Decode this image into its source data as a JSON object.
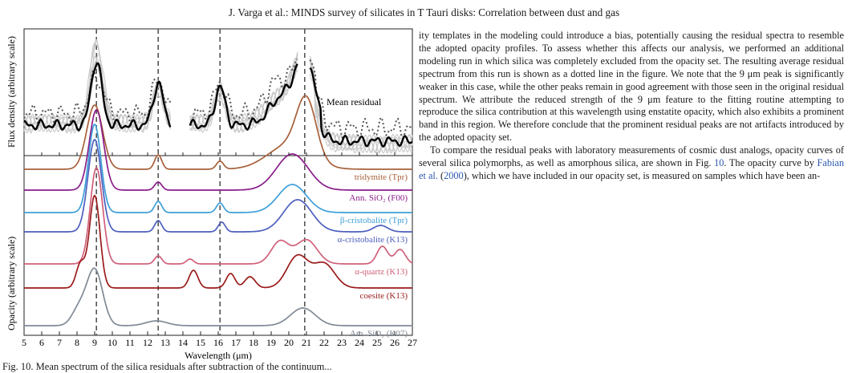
{
  "header": {
    "running_title": "J. Varga et al.: MINDS survey of silicates in T Tauri disks: Correlation between dust and gas"
  },
  "figure": {
    "top_ylabel": "Flux density (arbitrary scale)",
    "bottom_ylabel": "Opacity (arbitrary scale)",
    "xlabel": "Wavelength (μm)",
    "mean_label": "Mean residual",
    "curve_labels": [
      {
        "text": "tridymite (Tpr)",
        "color": "#a8603a"
      },
      {
        "text": "Ann. SiO₂ (F00)",
        "color": "#8b1d8b"
      },
      {
        "text": "β-cristobalite (Tpr)",
        "color": "#3d9fd8"
      },
      {
        "text": "α-cristobalite (K13)",
        "color": "#4d5fbf"
      },
      {
        "text": "α-quartz (K13)",
        "color": "#d0607a"
      },
      {
        "text": "coesite (K13)",
        "color": "#9b1b1b"
      },
      {
        "text": "Am. SiO₂ (K07)",
        "color": "#808a96"
      }
    ]
  },
  "chart_data": {
    "type": "line",
    "xlabel": "Wavelength (μm)",
    "ylabel_top": "Flux density (arbitrary scale)",
    "ylabel_bottom": "Opacity (arbitrary scale)",
    "xlim": [
      5,
      27
    ],
    "xticks": [
      5,
      6,
      7,
      8,
      9,
      10,
      11,
      12,
      13,
      14,
      15,
      16,
      17,
      18,
      19,
      20,
      21,
      22,
      23,
      24,
      25,
      26,
      27
    ],
    "vertical_lines": [
      9.1,
      12.6,
      16.1,
      20.9
    ],
    "series": [
      {
        "name": "Mean residual",
        "color": "#000000"
      },
      {
        "name": "tridymite (Tpr)",
        "color": "#a8603a"
      },
      {
        "name": "Ann. SiO₂ (F00)",
        "color": "#8b1d8b"
      },
      {
        "name": "β-cristobalite (Tpr)",
        "color": "#3d9fd8"
      },
      {
        "name": "α-cristobalite (K13)",
        "color": "#4d5fbf"
      },
      {
        "name": "α-quartz (K13)",
        "color": "#d0607a"
      },
      {
        "name": "coesite (K13)",
        "color": "#9b1b1b"
      },
      {
        "name": "Am. SiO₂ (K07)",
        "color": "#808a96"
      }
    ]
  },
  "caption": {
    "text": "Fig. 10. Mean spectrum of the silica residuals after subtraction of the continuum..."
  },
  "body": {
    "p1": "ity templates in the modeling could introduce a bias, potentially causing the residual spectra to resemble the adopted opacity profiles. To assess whether this affects our analysis, we performed an additional modeling run in which silica was completely excluded from the opacity set. The resulting average residual spectrum from this run is shown as a dotted line in the figure. We note that the 9 μm peak is significantly weaker in this case, while the other peaks remain in good agreement with those seen in the original residual spectrum. We attribute the reduced strength of the 9 μm feature to the fitting routine attempting to reproduce the silica contribution at this wavelength using enstatite opacity, which also exhibits a prominent band in this region. We therefore conclude that the prominent residual peaks are not artifacts introduced by the adopted opacity set.",
    "p2_a": "To compare the residual peaks with laboratory measurements of cosmic dust analogs, opacity curves of several silica polymorphs, as well as amorphous silica, are shown in Fig.",
    "p2_fig": "10",
    "p2_b": ". The opacity curve by",
    "p2_cite": "Fabian et al.",
    "p2_c": "(",
    "p2_year": "2000",
    "p2_d": "), which we have included in our opacity set, is measured on samples which have been an-"
  }
}
